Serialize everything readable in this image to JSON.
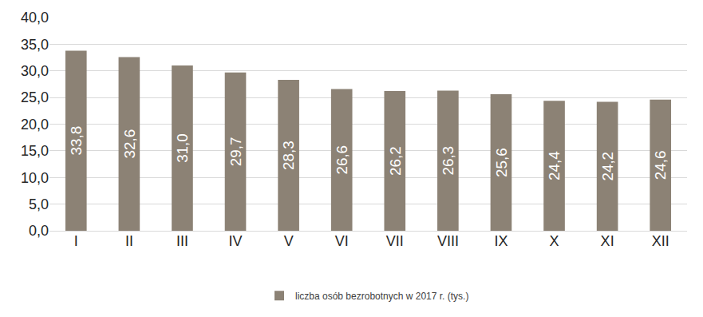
{
  "chart_data": {
    "type": "bar",
    "categories": [
      "I",
      "II",
      "III",
      "IV",
      "V",
      "VI",
      "VII",
      "VIII",
      "IX",
      "X",
      "XI",
      "XII"
    ],
    "series": [
      {
        "name": "liczba osób bezrobotnych w 2017 r. (tys.)",
        "color": "#8c8275",
        "values": [
          33.8,
          32.6,
          31.0,
          29.7,
          28.3,
          26.6,
          26.2,
          26.3,
          25.6,
          24.4,
          24.2,
          24.6
        ],
        "value_labels": [
          "33,8",
          "32,6",
          "31,0",
          "29,7",
          "28,3",
          "26,6",
          "26,2",
          "26,3",
          "25,6",
          "24,4",
          "24,2",
          "24,6"
        ]
      }
    ],
    "ylim": [
      0,
      40
    ],
    "yticks": [
      {
        "value": 0,
        "label": "0,0"
      },
      {
        "value": 5,
        "label": "5,0"
      },
      {
        "value": 10,
        "label": "10,0"
      },
      {
        "value": 15,
        "label": "15,0"
      },
      {
        "value": 20,
        "label": "20,0"
      },
      {
        "value": 25,
        "label": "25,0"
      },
      {
        "value": 30,
        "label": "30,0"
      },
      {
        "value": 35,
        "label": "35,0"
      },
      {
        "value": 40,
        "label": "40,0"
      }
    ],
    "grid": true,
    "legend": "bottom",
    "data_labels": true
  }
}
